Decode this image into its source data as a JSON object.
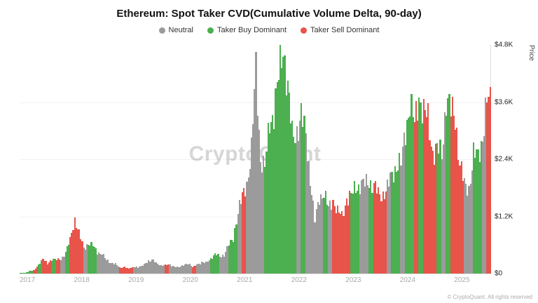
{
  "title": "Ethereum: Spot Taker CVD(Cumulative Volume Delta, 90-day)",
  "legend": {
    "neutral": "Neutral",
    "taker_buy": "Taker Buy Dominant",
    "taker_sell": "Taker Sell Dominant"
  },
  "watermark": "CryptoQuant",
  "footer": "© CryptoQuant. All rights reserved",
  "chart_data": {
    "type": "area",
    "title": "Ethereum: Spot Taker CVD(Cumulative Volume Delta, 90-day)",
    "xlabel": "",
    "ylabel": "Price",
    "ylim": [
      0,
      4800
    ],
    "y_tick_labels": [
      "$4.8K",
      "$3.6K",
      "$2.4K",
      "$1.2K",
      "$0"
    ],
    "x_tick_labels": [
      "2017",
      "2018",
      "2019",
      "2020",
      "2021",
      "2022",
      "2023",
      "2024",
      "2025"
    ],
    "x_start": "2017-01",
    "x_end": "2025-08",
    "interval": "monthly",
    "legend_entries": [
      "Neutral",
      "Taker Buy Dominant",
      "Taker Sell Dominant"
    ],
    "colors": {
      "neutral": "#9b9b9b",
      "taker_buy": "#4caf50",
      "taker_sell": "#e8534a"
    },
    "color_key": {
      "n": "neutral",
      "g": "taker_buy",
      "r": "taker_sell"
    },
    "values": [
      10,
      15,
      50,
      70,
      200,
      300,
      210,
      300,
      290,
      300,
      450,
      700,
      1150,
      850,
      520,
      650,
      580,
      450,
      430,
      280,
      230,
      200,
      120,
      140,
      105,
      135,
      140,
      165,
      250,
      300,
      220,
      175,
      180,
      180,
      150,
      130,
      180,
      220,
      130,
      200,
      230,
      230,
      320,
      400,
      360,
      390,
      600,
      740,
      1300,
      1600,
      1900,
      2600,
      4300,
      2400,
      2200,
      3200,
      3400,
      4100,
      4800,
      3900,
      2900,
      3000,
      3300,
      2900,
      2000,
      1100,
      1600,
      1700,
      1350,
      1550,
      1300,
      1200,
      1580,
      1640,
      1800,
      1870,
      1870,
      1930,
      1870,
      1650,
      1670,
      1800,
      2050,
      2280,
      2300,
      3000,
      3600,
      3100,
      3750,
      3400,
      3230,
      2550,
      2600,
      2500,
      3700,
      3400,
      3300,
      2300,
      1850,
      1800,
      2500,
      2450,
      2900,
      3600
    ],
    "point_colors": [
      "g",
      "g",
      "g",
      "r",
      "g",
      "r",
      "r",
      "g",
      "r",
      "n",
      "g",
      "r",
      "r",
      "r",
      "n",
      "g",
      "g",
      "n",
      "n",
      "n",
      "n",
      "n",
      "r",
      "r",
      "r",
      "n",
      "n",
      "n",
      "n",
      "n",
      "n",
      "n",
      "r",
      "n",
      "n",
      "n",
      "n",
      "n",
      "r",
      "n",
      "n",
      "n",
      "g",
      "g",
      "n",
      "n",
      "g",
      "g",
      "n",
      "r",
      "n",
      "n",
      "n",
      "n",
      "g",
      "g",
      "g",
      "g",
      "g",
      "g",
      "g",
      "n",
      "g",
      "n",
      "n",
      "n",
      "n",
      "g",
      "n",
      "r",
      "r",
      "r",
      "r",
      "g",
      "g",
      "n",
      "n",
      "g",
      "r",
      "r",
      "r",
      "n",
      "g",
      "g",
      "n",
      "g",
      "g",
      "r",
      "g",
      "r",
      "r",
      "r",
      "g",
      "n",
      "g",
      "r",
      "r",
      "r",
      "n",
      "n",
      "g",
      "g",
      "n",
      "r"
    ]
  }
}
